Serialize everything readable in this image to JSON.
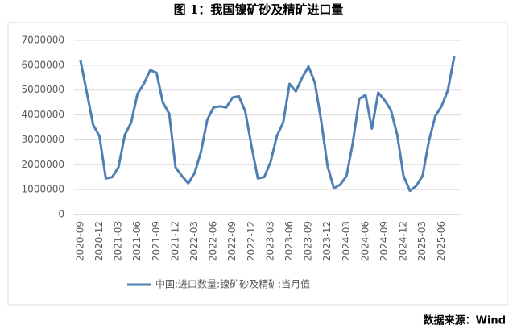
{
  "chart_data": {
    "type": "line",
    "title": "图 1：我国镍矿砂及精矿进口量",
    "categories": [
      "2020-09",
      null,
      null,
      "2020-12",
      null,
      null,
      "2021-03",
      null,
      null,
      "2021-06",
      null,
      null,
      "2021-09",
      null,
      null,
      "2021-12",
      null,
      null,
      "2022-03",
      null,
      null,
      "2022-06",
      null,
      null,
      "2022-09",
      null,
      null,
      "2022-12",
      null,
      null,
      "2023-03",
      null,
      null,
      "2023-06",
      null,
      null,
      "2023-09",
      null,
      null,
      "2023-12",
      null,
      null,
      "2024-03",
      null,
      null,
      "2024-06",
      null,
      null,
      "2024-09",
      null,
      null,
      "2024-12",
      null,
      null,
      "2025-03",
      null,
      null,
      "2025-06",
      null,
      null
    ],
    "series": [
      {
        "name": "中国:进口数量:镍矿砂及精矿:当月值",
        "color": "#4f7fb3",
        "values": [
          6200000,
          4900000,
          3600000,
          3150000,
          1450000,
          1500000,
          1900000,
          3200000,
          3700000,
          4850000,
          5250000,
          5800000,
          5700000,
          4500000,
          4050000,
          1900000,
          1550000,
          1250000,
          1650000,
          2500000,
          3800000,
          4300000,
          4350000,
          4300000,
          4700000,
          4750000,
          4150000,
          2750000,
          1450000,
          1500000,
          2100000,
          3150000,
          3700000,
          5250000,
          4950000,
          5500000,
          5950000,
          5300000,
          3750000,
          1950000,
          1050000,
          1200000,
          1550000,
          2900000,
          4650000,
          4800000,
          3450000,
          4900000,
          4600000,
          4200000,
          3200000,
          1550000,
          950000,
          1150000,
          1550000,
          2950000,
          3950000,
          4350000,
          5000000,
          6350000
        ]
      }
    ],
    "ylim": [
      0,
      7000000
    ],
    "yticks": [
      0,
      1000000,
      2000000,
      3000000,
      4000000,
      5000000,
      6000000,
      7000000
    ],
    "grid": true,
    "legend": "bottom"
  },
  "source": "数据来源：Wind"
}
